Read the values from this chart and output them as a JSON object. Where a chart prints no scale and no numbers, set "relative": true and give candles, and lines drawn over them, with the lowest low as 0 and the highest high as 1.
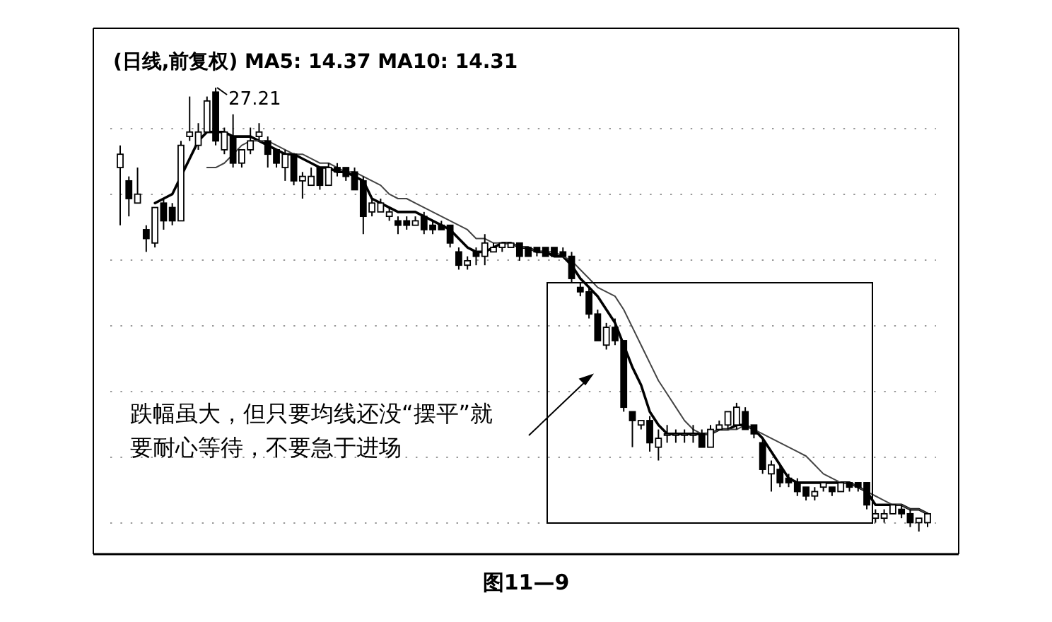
{
  "chart_data": {
    "type": "candlestick",
    "relative": true,
    "title": "(日线,前复权) MA5: 14.37 MA10: 14.31",
    "grid": "y",
    "annotations": [
      "27.21",
      "跌幅虽大，但只要均线还没“摆平”就要耐心等待，不要急于进场",
      "图11—9"
    ],
    "categories": [
      null,
      null,
      null,
      null,
      null,
      null,
      null,
      null,
      null,
      null,
      null,
      null,
      null,
      null,
      null,
      null,
      null,
      null,
      null,
      null,
      null,
      null,
      null,
      null,
      null,
      null,
      null,
      null,
      null,
      null,
      null,
      null,
      null,
      null,
      null,
      null,
      null,
      null,
      null,
      null,
      null,
      null,
      null,
      null,
      null,
      null,
      null,
      null,
      null,
      null,
      null,
      null,
      null,
      null,
      null,
      null,
      null,
      null,
      null,
      null,
      null,
      null,
      null,
      null,
      null,
      null,
      null,
      null,
      null,
      null,
      null,
      null,
      null,
      null,
      null,
      null,
      null,
      null,
      null,
      null,
      null,
      null,
      null,
      null,
      null,
      null,
      null,
      null,
      null,
      null,
      null,
      null,
      null,
      null
    ],
    "ohlc": [
      [
        0.82,
        0.87,
        0.69,
        0.85
      ],
      [
        0.79,
        0.8,
        0.71,
        0.75
      ],
      [
        0.74,
        0.82,
        0.74,
        0.76
      ],
      [
        0.68,
        0.69,
        0.63,
        0.66
      ],
      [
        0.65,
        0.73,
        0.64,
        0.73
      ],
      [
        0.74,
        0.75,
        0.68,
        0.7
      ],
      [
        0.73,
        0.74,
        0.69,
        0.7
      ],
      [
        0.7,
        0.88,
        0.7,
        0.87
      ],
      [
        0.89,
        0.98,
        0.88,
        0.9
      ],
      [
        0.87,
        0.92,
        0.86,
        0.9
      ],
      [
        0.9,
        0.98,
        0.9,
        0.97
      ],
      [
        0.99,
        1.0,
        0.87,
        0.88
      ],
      [
        0.86,
        0.91,
        0.85,
        0.9
      ],
      [
        0.89,
        0.94,
        0.82,
        0.83
      ],
      [
        0.83,
        0.86,
        0.82,
        0.86
      ],
      [
        0.86,
        0.91,
        0.85,
        0.88
      ],
      [
        0.89,
        0.92,
        0.88,
        0.9
      ],
      [
        0.88,
        0.89,
        0.82,
        0.85
      ],
      [
        0.86,
        0.86,
        0.82,
        0.83
      ],
      [
        0.82,
        0.86,
        0.79,
        0.85
      ],
      [
        0.85,
        0.85,
        0.78,
        0.79
      ],
      [
        0.79,
        0.81,
        0.75,
        0.8
      ],
      [
        0.78,
        0.82,
        0.78,
        0.8
      ],
      [
        0.82,
        0.82,
        0.77,
        0.78
      ],
      [
        0.78,
        0.83,
        0.78,
        0.82
      ],
      [
        0.82,
        0.83,
        0.8,
        0.81
      ],
      [
        0.82,
        0.82,
        0.79,
        0.8
      ],
      [
        0.81,
        0.82,
        0.77,
        0.77
      ],
      [
        0.79,
        0.8,
        0.67,
        0.71
      ],
      [
        0.72,
        0.75,
        0.71,
        0.74
      ],
      [
        0.72,
        0.75,
        0.72,
        0.74
      ],
      [
        0.71,
        0.73,
        0.7,
        0.72
      ],
      [
        0.7,
        0.71,
        0.67,
        0.69
      ],
      [
        0.7,
        0.71,
        0.68,
        0.69
      ],
      [
        0.69,
        0.71,
        0.69,
        0.7
      ],
      [
        0.71,
        0.72,
        0.67,
        0.68
      ],
      [
        0.69,
        0.7,
        0.67,
        0.68
      ],
      [
        0.69,
        0.7,
        0.68,
        0.68
      ],
      [
        0.69,
        0.69,
        0.64,
        0.65
      ],
      [
        0.63,
        0.64,
        0.59,
        0.6
      ],
      [
        0.6,
        0.62,
        0.59,
        0.61
      ],
      [
        0.63,
        0.64,
        0.6,
        0.62
      ],
      [
        0.62,
        0.67,
        0.6,
        0.65
      ],
      [
        0.63,
        0.65,
        0.63,
        0.64
      ],
      [
        0.64,
        0.65,
        0.63,
        0.65
      ],
      [
        0.64,
        0.65,
        0.64,
        0.65
      ],
      [
        0.65,
        0.65,
        0.61,
        0.62
      ],
      [
        0.64,
        0.64,
        0.62,
        0.62
      ],
      [
        0.64,
        0.64,
        0.62,
        0.63
      ],
      [
        0.64,
        0.64,
        0.62,
        0.62
      ],
      [
        0.64,
        0.64,
        0.62,
        0.62
      ],
      [
        0.63,
        0.64,
        0.62,
        0.62
      ],
      [
        0.62,
        0.63,
        0.56,
        0.57
      ],
      [
        0.55,
        0.56,
        0.53,
        0.54
      ],
      [
        0.54,
        0.55,
        0.48,
        0.49
      ],
      [
        0.49,
        0.5,
        0.43,
        0.43
      ],
      [
        0.42,
        0.47,
        0.41,
        0.46
      ],
      [
        0.46,
        0.48,
        0.42,
        0.43
      ],
      [
        0.43,
        0.43,
        0.27,
        0.28
      ],
      [
        0.27,
        0.27,
        0.19,
        0.25
      ],
      [
        0.24,
        0.25,
        0.23,
        0.25
      ],
      [
        0.25,
        0.26,
        0.18,
        0.2
      ],
      [
        0.19,
        0.23,
        0.16,
        0.21
      ],
      [
        0.22,
        0.24,
        0.2,
        0.22
      ],
      [
        0.22,
        0.23,
        0.2,
        0.22
      ],
      [
        0.22,
        0.23,
        0.2,
        0.22
      ],
      [
        0.22,
        0.24,
        0.2,
        0.22
      ],
      [
        0.22,
        0.23,
        0.19,
        0.19
      ],
      [
        0.19,
        0.24,
        0.19,
        0.23
      ],
      [
        0.23,
        0.25,
        0.23,
        0.24
      ],
      [
        0.24,
        0.27,
        0.23,
        0.27
      ],
      [
        0.24,
        0.29,
        0.23,
        0.28
      ],
      [
        0.27,
        0.28,
        0.23,
        0.23
      ],
      [
        0.24,
        0.24,
        0.21,
        0.22
      ],
      [
        0.2,
        0.21,
        0.13,
        0.14
      ],
      [
        0.13,
        0.16,
        0.09,
        0.15
      ],
      [
        0.14,
        0.15,
        0.1,
        0.11
      ],
      [
        0.12,
        0.13,
        0.1,
        0.11
      ],
      [
        0.11,
        0.12,
        0.08,
        0.09
      ],
      [
        0.1,
        0.1,
        0.07,
        0.08
      ],
      [
        0.08,
        0.1,
        0.07,
        0.09
      ],
      [
        0.1,
        0.11,
        0.09,
        0.11
      ],
      [
        0.1,
        0.1,
        0.08,
        0.09
      ],
      [
        0.09,
        0.11,
        0.09,
        0.11
      ],
      [
        0.11,
        0.11,
        0.09,
        0.1
      ],
      [
        0.11,
        0.11,
        0.09,
        0.1
      ],
      [
        0.11,
        0.11,
        0.05,
        0.06
      ],
      [
        0.03,
        0.05,
        0.02,
        0.04
      ],
      [
        0.03,
        0.05,
        0.02,
        0.04
      ],
      [
        0.04,
        0.06,
        0.04,
        0.06
      ],
      [
        0.05,
        0.06,
        0.03,
        0.04
      ],
      [
        0.04,
        0.05,
        0.01,
        0.02
      ],
      [
        0.02,
        0.03,
        0.0,
        0.03
      ],
      [
        0.02,
        0.04,
        0.01,
        0.04
      ]
    ],
    "series": [
      {
        "type": "line",
        "color": "#000000",
        "values": [
          null,
          null,
          null,
          null,
          0.74,
          0.75,
          0.76,
          0.8,
          0.84,
          0.88,
          0.9,
          0.9,
          0.9,
          0.89,
          0.89,
          0.89,
          0.88,
          0.87,
          0.86,
          0.85,
          0.85,
          0.84,
          0.83,
          0.82,
          0.82,
          0.81,
          0.81,
          0.8,
          0.79,
          0.75,
          0.74,
          0.73,
          0.72,
          0.72,
          0.72,
          0.71,
          0.7,
          0.69,
          0.68,
          0.66,
          0.64,
          0.63,
          0.63,
          0.64,
          0.65,
          0.65,
          0.64,
          0.64,
          0.63,
          0.63,
          0.62,
          0.62,
          0.6,
          0.57,
          0.55,
          0.53,
          0.5,
          0.47,
          0.42,
          0.37,
          0.33,
          0.27,
          0.24,
          0.22,
          0.22,
          0.22,
          0.22,
          0.22,
          0.22,
          0.23,
          0.23,
          0.24,
          0.24,
          0.23,
          0.21,
          0.18,
          0.15,
          0.12,
          0.11,
          0.11,
          0.11,
          0.11,
          0.11,
          0.11,
          0.11,
          0.1,
          0.09,
          0.06,
          0.06,
          0.06,
          0.06,
          0.05,
          0.05,
          0.04
        ]
      },
      {
        "type": "line",
        "color": "#444444",
        "values": [
          null,
          null,
          null,
          null,
          null,
          null,
          null,
          null,
          null,
          null,
          0.82,
          0.82,
          0.83,
          0.85,
          0.87,
          0.88,
          0.88,
          0.88,
          0.87,
          0.86,
          0.85,
          0.85,
          0.84,
          0.83,
          0.83,
          0.82,
          0.81,
          0.81,
          0.8,
          0.79,
          0.78,
          0.76,
          0.75,
          0.75,
          0.74,
          0.73,
          0.72,
          0.71,
          0.7,
          0.69,
          0.68,
          0.66,
          0.66,
          0.65,
          0.65,
          0.65,
          0.64,
          0.64,
          0.63,
          0.63,
          0.63,
          0.62,
          0.61,
          0.59,
          0.57,
          0.55,
          0.54,
          0.53,
          0.5,
          0.46,
          0.42,
          0.38,
          0.34,
          0.31,
          0.28,
          0.25,
          0.23,
          0.22,
          0.22,
          0.23,
          0.23,
          0.23,
          0.24,
          0.23,
          0.22,
          0.21,
          0.2,
          0.19,
          0.18,
          0.17,
          0.15,
          0.13,
          0.12,
          0.11,
          0.11,
          0.1,
          0.09,
          0.08,
          0.07,
          0.06,
          0.06,
          0.05,
          0.05,
          0.04
        ]
      }
    ]
  }
}
